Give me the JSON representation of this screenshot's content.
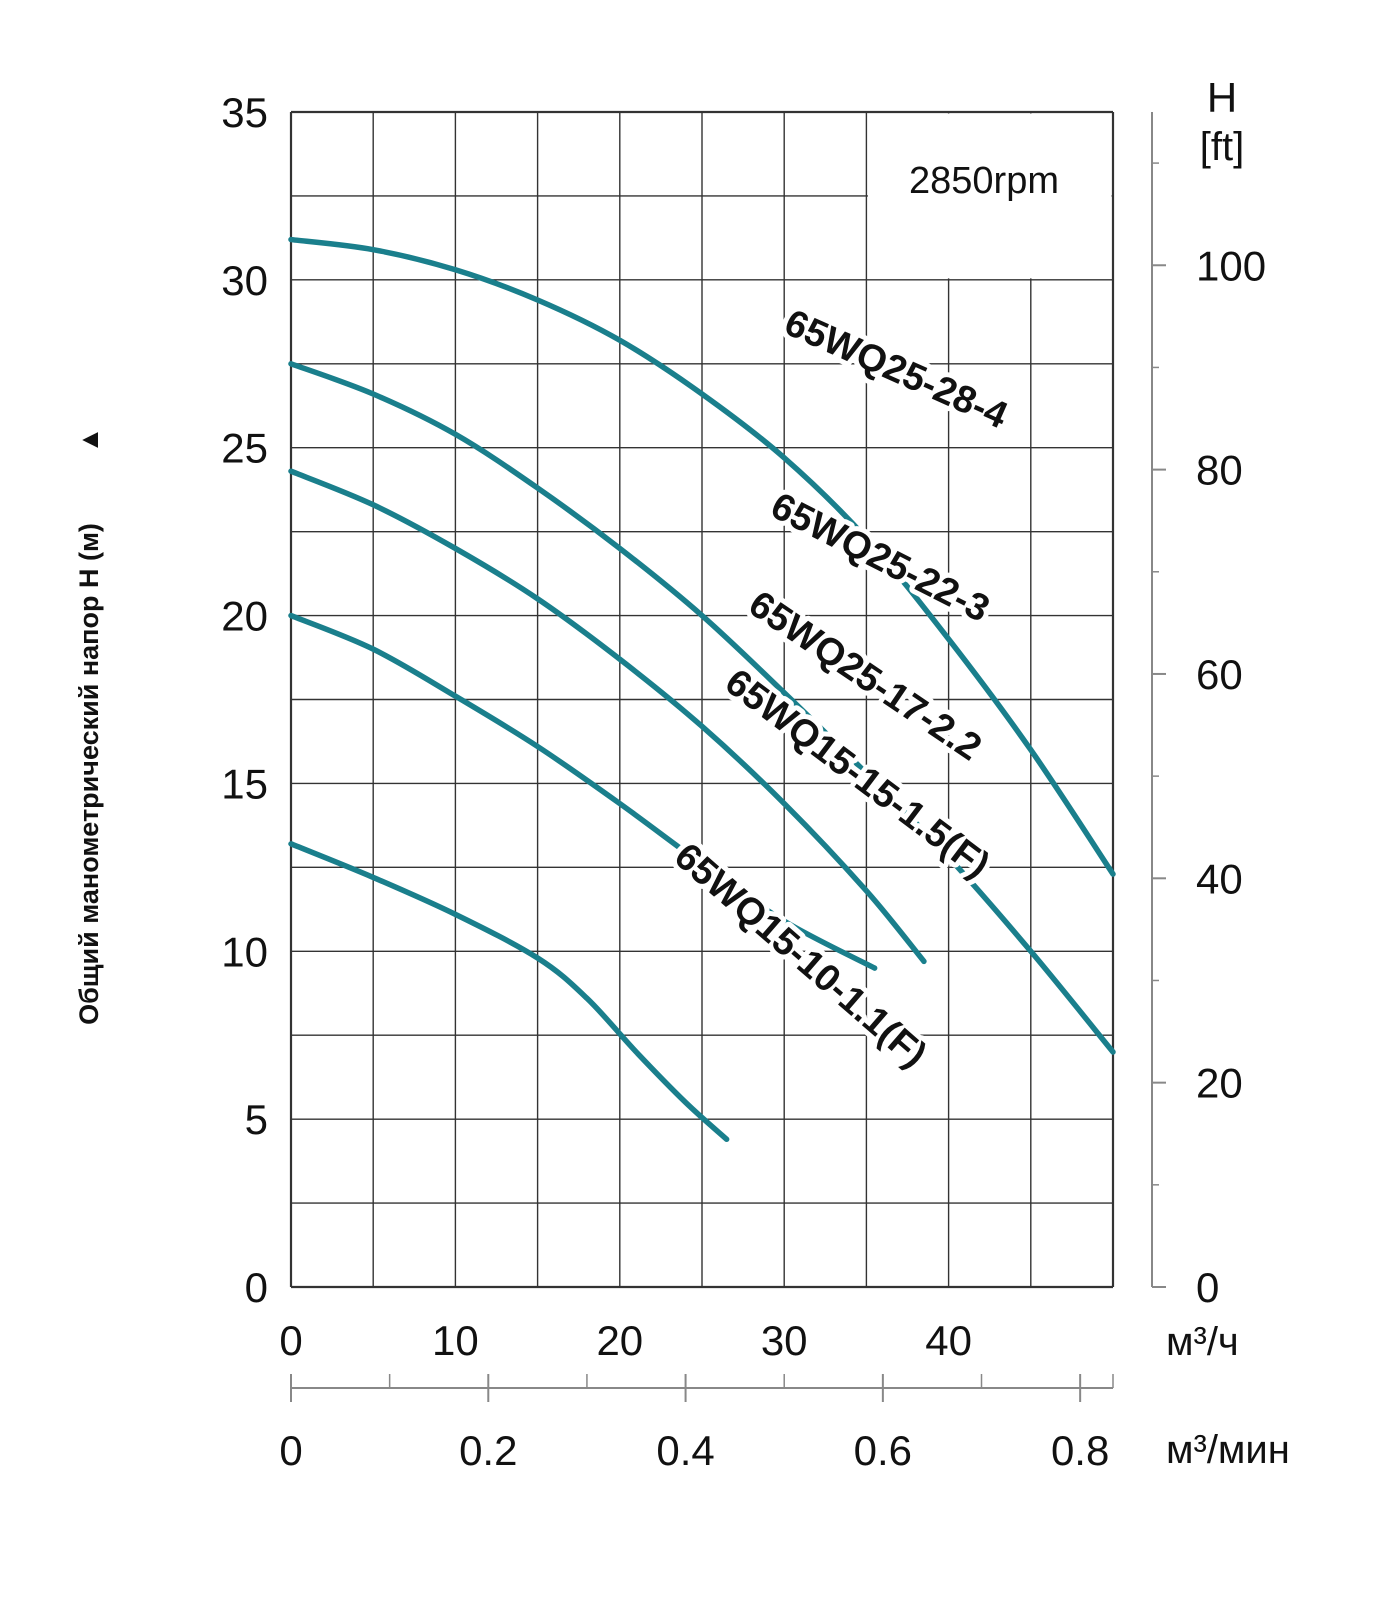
{
  "chart_data": {
    "type": "line",
    "speed_label": "2850rpm",
    "ylabel": "Общий манометрический напор H (м)",
    "ylabel_arrow": "▲",
    "y_axis": {
      "ylim": [
        0,
        35
      ],
      "ticks": [
        "0",
        "5",
        "10",
        "15",
        "20",
        "25",
        "30",
        "35"
      ],
      "grid_step": 2.5
    },
    "y2_axis": {
      "title_line1": "H",
      "title_line2": "[ft]",
      "range": [
        0,
        115
      ],
      "ticks": [
        0,
        20,
        40,
        60,
        80,
        100
      ],
      "tick_labels": [
        "0",
        "20",
        "40",
        "60",
        "80",
        "100"
      ]
    },
    "x_axis": {
      "unit": "м³/ч",
      "xlim": [
        0,
        50
      ],
      "ticks": [
        0,
        10,
        20,
        30,
        40
      ],
      "tick_labels": [
        "0",
        "10",
        "20",
        "30",
        "40"
      ],
      "grid_step": 5
    },
    "x2_axis": {
      "unit": "м³/мин",
      "range": [
        0,
        0.8333
      ],
      "ticks": [
        0,
        0.2,
        0.4,
        0.6,
        0.8
      ],
      "tick_labels": [
        "0",
        "0.2",
        "0.4",
        "0.6",
        "0.8"
      ],
      "minor_ticks": [
        0.1,
        0.3,
        0.5,
        0.7
      ]
    },
    "curve_color": "#1a7f8c",
    "series": [
      {
        "name": "65WQ25-28-4",
        "x": [
          0,
          5,
          10,
          15,
          20,
          25,
          30,
          35,
          40,
          45,
          50
        ],
        "y": [
          31.2,
          30.9,
          30.3,
          29.4,
          28.2,
          26.6,
          24.7,
          22.3,
          19.3,
          16.0,
          12.3
        ],
        "label_x": 36.5,
        "label_y": 27.0,
        "label_angle": 24
      },
      {
        "name": "65WQ25-22-3",
        "x": [
          0,
          5,
          10,
          15,
          20,
          25,
          30,
          35,
          40,
          45,
          50
        ],
        "y": [
          27.5,
          26.6,
          25.4,
          23.8,
          22.0,
          20.0,
          17.7,
          15.3,
          12.8,
          10.0,
          7.0
        ],
        "label_x": 35.5,
        "label_y": 21.4,
        "label_angle": 27
      },
      {
        "name": "65WQ25-17-2.2",
        "x": [
          0,
          5,
          10,
          15,
          20,
          25,
          30,
          35,
          38.5
        ],
        "y": [
          24.3,
          23.3,
          22.0,
          20.5,
          18.7,
          16.7,
          14.4,
          11.8,
          9.7
        ],
        "label_x": 34.5,
        "label_y": 17.9,
        "label_angle": 34
      },
      {
        "name": "65WQ15-15-1.5(F)",
        "x": [
          0,
          5,
          10,
          15,
          20,
          25,
          30,
          35.5
        ],
        "y": [
          20.0,
          19.0,
          17.6,
          16.1,
          14.4,
          12.6,
          10.9,
          9.5
        ],
        "label_x": 34.0,
        "label_y": 15.0,
        "label_angle": 37
      },
      {
        "name": "65WQ15-10-1.1(F)",
        "x": [
          0,
          5,
          10,
          15,
          18,
          21,
          24,
          26.5
        ],
        "y": [
          13.2,
          12.2,
          11.1,
          9.8,
          8.6,
          7.0,
          5.5,
          4.4
        ],
        "label_x": 30.5,
        "label_y": 9.6,
        "label_angle": 41
      }
    ]
  }
}
